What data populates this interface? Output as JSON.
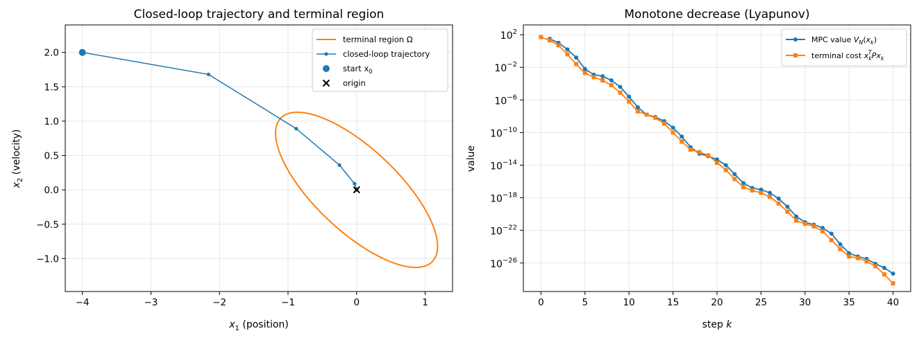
{
  "chart_data": [
    {
      "type": "line",
      "title": "Closed-loop trajectory and terminal region",
      "xlabel": {
        "pre": "x",
        "sub": "1",
        "post": " (position)"
      },
      "ylabel": {
        "pre": "x",
        "sub": "2",
        "post": " (velocity)"
      },
      "xlim": [
        -4.25,
        1.4
      ],
      "ylim": [
        -1.48,
        2.4
      ],
      "xticks": [
        -4,
        -3,
        -2,
        -1,
        0,
        1
      ],
      "xtick_labels": [
        "−4",
        "−3",
        "−2",
        "−1",
        "0",
        "1"
      ],
      "yticks": [
        -1.0,
        -0.5,
        0.0,
        0.5,
        1.0,
        1.5,
        2.0
      ],
      "ytick_labels": [
        "−1.0",
        "−0.5",
        "0.0",
        "0.5",
        "1.0",
        "1.5",
        "2.0"
      ],
      "grid": true,
      "legend_position": "top-right",
      "legend": [
        {
          "pre": "terminal region Ω",
          "sub": "",
          "post": ""
        },
        {
          "pre": "closed-loop trajectory",
          "sub": "",
          "post": ""
        },
        {
          "pre": "start x",
          "sub": "0",
          "post": ""
        },
        {
          "pre": "origin",
          "sub": "",
          "post": ""
        }
      ],
      "colors": {
        "region": "#ff7f0e",
        "trajectory": "#1f77b4",
        "start": "#1f77b4",
        "origin": "#000000"
      },
      "trajectory": {
        "x": [
          -4.0,
          -2.16,
          -0.88,
          -0.25,
          -0.03,
          0.0,
          0.0
        ],
        "y": [
          2.0,
          1.68,
          0.89,
          0.36,
          0.09,
          0.01,
          0.0
        ]
      },
      "start": {
        "x": -4.0,
        "y": 2.0
      },
      "origin": {
        "x": 0.0,
        "y": 0.0
      },
      "terminal_region": {
        "shape": "ellipse",
        "center": [
          0.0,
          0.0
        ],
        "semi_axis_major": 1.52,
        "semi_axis_minor": 0.6,
        "major_axis_direction": [
          0.729,
          -0.685
        ]
      }
    },
    {
      "type": "line",
      "title": "Monotone decrease (Lyapunov)",
      "xlabel": {
        "pre": "step ",
        "k": "k"
      },
      "ylabel": "value",
      "yscale": "log",
      "xlim": [
        -2,
        42
      ],
      "ylim_log10": [
        -29.5,
        3.2
      ],
      "xticks": [
        0,
        5,
        10,
        15,
        20,
        25,
        30,
        35,
        40
      ],
      "xtick_labels": [
        "0",
        "5",
        "10",
        "15",
        "20",
        "25",
        "30",
        "35",
        "40"
      ],
      "ytick_exponents": [
        2,
        -2,
        -6,
        -10,
        -14,
        -18,
        -22,
        -26
      ],
      "ytick_exponent_labels": [
        "2",
        "−2",
        "−6",
        "−10",
        "−14",
        "−18",
        "−22",
        "−26"
      ],
      "grid": true,
      "legend_position": "top-right",
      "series": [
        {
          "name": "MPC value V_N(x_k)",
          "legend_parts": {
            "pre": "MPC value ",
            "v": "V",
            "vsub": "N",
            "mid": "(",
            "x": "x",
            "xsub": "k",
            "post": ")"
          },
          "color": "#1f77b4",
          "marker": "circle",
          "x": [
            1,
            2,
            3,
            4,
            5,
            6,
            7,
            8,
            9,
            10,
            11,
            12,
            13,
            14,
            15,
            16,
            17,
            18,
            19,
            20,
            21,
            22,
            23,
            24,
            25,
            26,
            27,
            28,
            29,
            30,
            31,
            32,
            33,
            34,
            35,
            36,
            37,
            38,
            39,
            40
          ],
          "log10_values": [
            1.5,
            1.0,
            0.2,
            -0.8,
            -2.2,
            -2.9,
            -3.1,
            -3.6,
            -4.4,
            -5.6,
            -6.9,
            -7.8,
            -8.1,
            -8.6,
            -9.4,
            -10.5,
            -11.8,
            -12.6,
            -12.9,
            -13.3,
            -14.0,
            -15.1,
            -16.2,
            -16.8,
            -17.0,
            -17.4,
            -18.1,
            -19.1,
            -20.3,
            -21.0,
            -21.3,
            -21.7,
            -22.4,
            -23.7,
            -24.8,
            -25.2,
            -25.5,
            -26.1,
            -26.6,
            -27.3
          ]
        },
        {
          "name": "terminal cost x_k^T P x_k",
          "legend_parts": {
            "pre": "terminal cost ",
            "x": "x",
            "xsub": "k",
            "xsup": "T",
            "mid": "P",
            "x2": "x",
            "x2sub": "k"
          },
          "color": "#ff7f0e",
          "marker": "square",
          "x": [
            0,
            1,
            2,
            3,
            4,
            5,
            6,
            7,
            8,
            9,
            10,
            11,
            12,
            13,
            14,
            15,
            16,
            17,
            18,
            19,
            20,
            21,
            22,
            23,
            24,
            25,
            26,
            27,
            28,
            29,
            30,
            31,
            32,
            33,
            34,
            35,
            36,
            37,
            38,
            39,
            40
          ],
          "log10_values": [
            1.7,
            1.3,
            0.7,
            -0.4,
            -1.6,
            -2.7,
            -3.2,
            -3.6,
            -4.2,
            -5.1,
            -6.2,
            -7.4,
            -7.8,
            -8.2,
            -8.9,
            -10.0,
            -11.1,
            -12.1,
            -12.4,
            -12.8,
            -13.7,
            -14.6,
            -15.7,
            -16.7,
            -17.1,
            -17.4,
            -17.9,
            -18.7,
            -19.7,
            -20.8,
            -21.2,
            -21.5,
            -22.1,
            -23.2,
            -24.3,
            -25.2,
            -25.4,
            -25.8,
            -26.4,
            -27.4,
            -28.5
          ]
        }
      ]
    }
  ]
}
